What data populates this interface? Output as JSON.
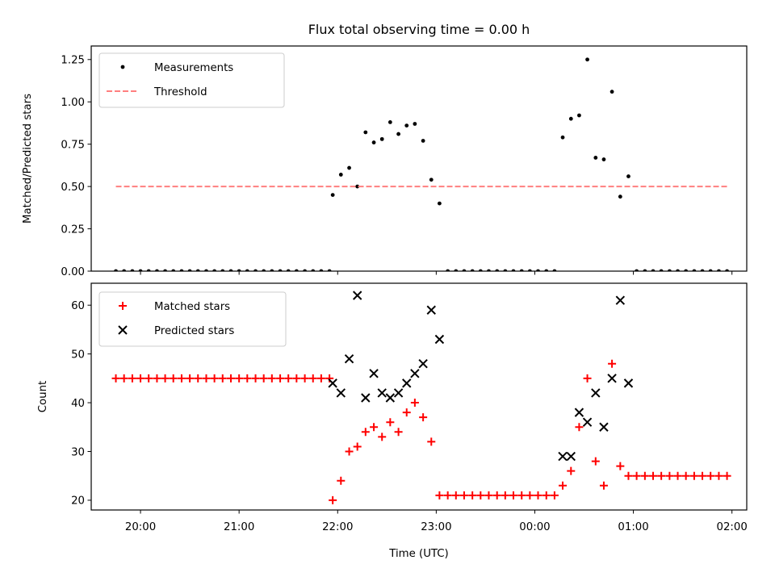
{
  "chart_data": [
    {
      "type": "scatter",
      "title": "Flux total observing time = 0.00 h",
      "xlabel": "",
      "ylabel": "Matched/Predicted stars",
      "ylim": [
        0,
        1.33
      ],
      "xlim": [
        -0.25,
        6.4
      ],
      "yticks": [
        0,
        0.25,
        0.5,
        0.75,
        1.0,
        1.25
      ],
      "ytick_labels": [
        "0.00",
        "0.25",
        "0.50",
        "0.75",
        "1.00",
        "1.25"
      ],
      "grid": false,
      "legend_position": "top-left",
      "series": [
        {
          "name": "Measurements",
          "marker": "dot",
          "color": "#000000",
          "points": [
            [
              0.0,
              0
            ],
            [
              0.083,
              0
            ],
            [
              0.167,
              0
            ],
            [
              0.25,
              0
            ],
            [
              0.333,
              0
            ],
            [
              0.417,
              0
            ],
            [
              0.5,
              0
            ],
            [
              0.583,
              0
            ],
            [
              0.667,
              0
            ],
            [
              0.75,
              0
            ],
            [
              0.833,
              0
            ],
            [
              0.917,
              0
            ],
            [
              1.0,
              0
            ],
            [
              1.083,
              0
            ],
            [
              1.167,
              0
            ],
            [
              1.25,
              0
            ],
            [
              1.333,
              0
            ],
            [
              1.417,
              0
            ],
            [
              1.5,
              0
            ],
            [
              1.583,
              0
            ],
            [
              1.667,
              0
            ],
            [
              1.75,
              0
            ],
            [
              1.833,
              0
            ],
            [
              1.917,
              0
            ],
            [
              2.0,
              0
            ],
            [
              2.083,
              0
            ],
            [
              2.167,
              0
            ],
            [
              2.2,
              0.45
            ],
            [
              2.283,
              0.57
            ],
            [
              2.367,
              0.61
            ],
            [
              2.45,
              0.5
            ],
            [
              2.533,
              0.82
            ],
            [
              2.617,
              0.76
            ],
            [
              2.7,
              0.78
            ],
            [
              2.783,
              0.88
            ],
            [
              2.867,
              0.81
            ],
            [
              2.95,
              0.86
            ],
            [
              3.033,
              0.87
            ],
            [
              3.117,
              0.77
            ],
            [
              3.2,
              0.54
            ],
            [
              3.283,
              0.4
            ],
            [
              3.367,
              0
            ],
            [
              3.45,
              0
            ],
            [
              3.533,
              0
            ],
            [
              3.617,
              0
            ],
            [
              3.7,
              0
            ],
            [
              3.783,
              0
            ],
            [
              3.867,
              0
            ],
            [
              3.95,
              0
            ],
            [
              4.033,
              0
            ],
            [
              4.117,
              0
            ],
            [
              4.2,
              0
            ],
            [
              4.283,
              0
            ],
            [
              4.367,
              0
            ],
            [
              4.45,
              0
            ],
            [
              4.533,
              0.79
            ],
            [
              4.617,
              0.9
            ],
            [
              4.7,
              0.92
            ],
            [
              4.783,
              1.25
            ],
            [
              4.867,
              0.67
            ],
            [
              4.95,
              0.66
            ],
            [
              5.033,
              1.06
            ],
            [
              5.117,
              0.44
            ],
            [
              5.2,
              0.56
            ],
            [
              5.283,
              0
            ],
            [
              5.367,
              0
            ],
            [
              5.45,
              0
            ],
            [
              5.533,
              0
            ],
            [
              5.617,
              0
            ],
            [
              5.7,
              0
            ],
            [
              5.783,
              0
            ],
            [
              5.867,
              0
            ],
            [
              5.95,
              0
            ],
            [
              6.033,
              0
            ],
            [
              6.117,
              0
            ],
            [
              6.2,
              0
            ]
          ]
        },
        {
          "name": "Threshold",
          "marker": "dashed-line",
          "color": "#ff7f7f",
          "points": [
            [
              0.0,
              0.5
            ],
            [
              6.2,
              0.5
            ]
          ]
        }
      ]
    },
    {
      "type": "scatter",
      "title": "",
      "xlabel": "Time (UTC)",
      "ylabel": "Count",
      "ylim": [
        18,
        64.5
      ],
      "xlim": [
        -0.25,
        6.4
      ],
      "yticks": [
        20,
        30,
        40,
        50,
        60
      ],
      "ytick_labels": [
        "20",
        "30",
        "40",
        "50",
        "60"
      ],
      "xticks": [
        0.25,
        1.25,
        2.25,
        3.25,
        4.25,
        5.25,
        6.25
      ],
      "xtick_labels": [
        "20:00",
        "21:00",
        "22:00",
        "23:00",
        "00:00",
        "01:00",
        "02:00"
      ],
      "grid": false,
      "legend_position": "top-left",
      "series": [
        {
          "name": "Matched stars",
          "marker": "plus",
          "color": "#ff0000",
          "points": [
            [
              0.0,
              45
            ],
            [
              0.083,
              45
            ],
            [
              0.167,
              45
            ],
            [
              0.25,
              45
            ],
            [
              0.333,
              45
            ],
            [
              0.417,
              45
            ],
            [
              0.5,
              45
            ],
            [
              0.583,
              45
            ],
            [
              0.667,
              45
            ],
            [
              0.75,
              45
            ],
            [
              0.833,
              45
            ],
            [
              0.917,
              45
            ],
            [
              1.0,
              45
            ],
            [
              1.083,
              45
            ],
            [
              1.167,
              45
            ],
            [
              1.25,
              45
            ],
            [
              1.333,
              45
            ],
            [
              1.417,
              45
            ],
            [
              1.5,
              45
            ],
            [
              1.583,
              45
            ],
            [
              1.667,
              45
            ],
            [
              1.75,
              45
            ],
            [
              1.833,
              45
            ],
            [
              1.917,
              45
            ],
            [
              2.0,
              45
            ],
            [
              2.083,
              45
            ],
            [
              2.167,
              45
            ],
            [
              2.2,
              20
            ],
            [
              2.283,
              24
            ],
            [
              2.367,
              30
            ],
            [
              2.45,
              31
            ],
            [
              2.533,
              34
            ],
            [
              2.617,
              35
            ],
            [
              2.7,
              33
            ],
            [
              2.783,
              36
            ],
            [
              2.867,
              34
            ],
            [
              2.95,
              38
            ],
            [
              3.033,
              40
            ],
            [
              3.117,
              37
            ],
            [
              3.2,
              32
            ],
            [
              3.283,
              21
            ],
            [
              3.367,
              21
            ],
            [
              3.45,
              21
            ],
            [
              3.533,
              21
            ],
            [
              3.617,
              21
            ],
            [
              3.7,
              21
            ],
            [
              3.783,
              21
            ],
            [
              3.867,
              21
            ],
            [
              3.95,
              21
            ],
            [
              4.033,
              21
            ],
            [
              4.117,
              21
            ],
            [
              4.2,
              21
            ],
            [
              4.283,
              21
            ],
            [
              4.367,
              21
            ],
            [
              4.45,
              21
            ],
            [
              4.533,
              23
            ],
            [
              4.617,
              26
            ],
            [
              4.7,
              35
            ],
            [
              4.783,
              45
            ],
            [
              4.867,
              28
            ],
            [
              4.95,
              23
            ],
            [
              5.033,
              48
            ],
            [
              5.117,
              27
            ],
            [
              5.2,
              25
            ],
            [
              5.283,
              25
            ],
            [
              5.367,
              25
            ],
            [
              5.45,
              25
            ],
            [
              5.533,
              25
            ],
            [
              5.617,
              25
            ],
            [
              5.7,
              25
            ],
            [
              5.783,
              25
            ],
            [
              5.867,
              25
            ],
            [
              5.95,
              25
            ],
            [
              6.033,
              25
            ],
            [
              6.117,
              25
            ],
            [
              6.2,
              25
            ]
          ]
        },
        {
          "name": "Predicted stars",
          "marker": "x",
          "color": "#000000",
          "points": [
            [
              2.2,
              44
            ],
            [
              2.283,
              42
            ],
            [
              2.367,
              49
            ],
            [
              2.45,
              62
            ],
            [
              2.533,
              41
            ],
            [
              2.617,
              46
            ],
            [
              2.7,
              42
            ],
            [
              2.783,
              41
            ],
            [
              2.867,
              42
            ],
            [
              2.95,
              44
            ],
            [
              3.033,
              46
            ],
            [
              3.117,
              48
            ],
            [
              3.2,
              59
            ],
            [
              3.283,
              53
            ],
            [
              4.533,
              29
            ],
            [
              4.617,
              29
            ],
            [
              4.7,
              38
            ],
            [
              4.783,
              36
            ],
            [
              4.867,
              42
            ],
            [
              4.95,
              35
            ],
            [
              5.033,
              45
            ],
            [
              5.117,
              61
            ],
            [
              5.2,
              44
            ]
          ]
        }
      ]
    }
  ]
}
